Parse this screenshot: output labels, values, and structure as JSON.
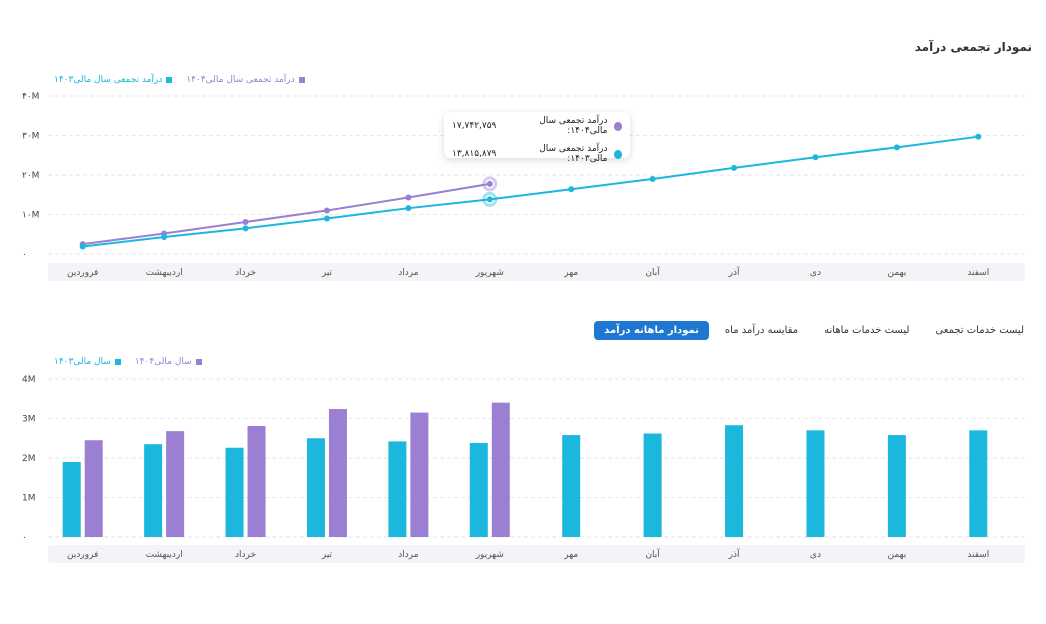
{
  "colors": {
    "purple": "#9b7fd3",
    "teal": "#1cb7dd",
    "grid": "#e6e6ee",
    "accent": "#1e78d2"
  },
  "cumulative": {
    "title": "نمودار تجمعی درآمد",
    "legend": [
      "درآمد تجمعی سال مالی۱۴۰۴",
      "درآمد تجمعی سال مالی۱۴۰۳"
    ],
    "tooltip": {
      "rows": [
        {
          "label": "درآمد تجمعی سال مالی۱۴۰۴:",
          "value": "۱۷,۷۴۲,۷۵۹"
        },
        {
          "label": "درآمد تجمعی سال مالی۱۴۰۳:",
          "value": "۱۳,۸۱۵,۸۷۹"
        }
      ]
    }
  },
  "tabs": [
    "نمودار ماهانه درآمد",
    "مقایسه درآمد ماه",
    "لیست خدمات ماهانه",
    "لیست خدمات تجمعی"
  ],
  "monthly": {
    "legend": [
      "سال مالی۱۴۰۴",
      "سال مالی۱۴۰۳"
    ]
  },
  "chart_data": [
    {
      "type": "line",
      "categories": [
        "فروردین",
        "اردیبهشت",
        "خرداد",
        "تیر",
        "مرداد",
        "شهریور",
        "مهر",
        "آبان",
        "آذر",
        "دی",
        "بهمن",
        "اسفند"
      ],
      "ylim": [
        0,
        40000000
      ],
      "yticks": [
        "۰",
        "۱۰M",
        "۲۰M",
        "۳۰M",
        "۴۰M"
      ],
      "series": [
        {
          "name": "درآمد تجمعی سال مالی۱۴۰۴",
          "color": "#9b7fd3",
          "values": [
            2500000,
            5200000,
            8100000,
            11000000,
            14300000,
            17742759,
            null,
            null,
            null,
            null,
            null,
            null
          ]
        },
        {
          "name": "درآمد تجمعی سال مالی۱۴۰۳",
          "color": "#1cb7dd",
          "values": [
            1900000,
            4300000,
            6500000,
            9000000,
            11600000,
            13815879,
            16400000,
            19000000,
            21800000,
            24500000,
            27000000,
            29700000
          ]
        }
      ]
    },
    {
      "type": "bar",
      "categories": [
        "فروردین",
        "اردیبهشت",
        "خرداد",
        "تیر",
        "مرداد",
        "شهریور",
        "مهر",
        "آبان",
        "آذر",
        "دی",
        "بهمن",
        "اسفند"
      ],
      "ylim": [
        0,
        4000000
      ],
      "yticks": [
        "۰",
        "1M",
        "2M",
        "3M",
        "4M"
      ],
      "series": [
        {
          "name": "سال مالی۱۴۰۳",
          "color": "#1cb7dd",
          "values": [
            1900000,
            2350000,
            2260000,
            2500000,
            2420000,
            2380000,
            2580000,
            2620000,
            2830000,
            2700000,
            2580000,
            2700000
          ]
        },
        {
          "name": "سال مالی۱۴۰۴",
          "color": "#9b7fd3",
          "values": [
            2450000,
            2680000,
            2810000,
            3240000,
            3150000,
            3400000,
            null,
            null,
            null,
            null,
            null,
            null
          ]
        }
      ]
    }
  ]
}
